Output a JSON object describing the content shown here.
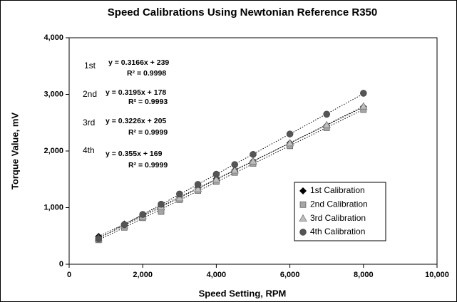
{
  "chart_data": {
    "type": "scatter",
    "title": "Speed Calibrations Using Newtonian Reference R350",
    "xlabel": "Speed Setting, RPM",
    "ylabel": "Torque Value, mV",
    "x": [
      800,
      1500,
      2000,
      2500,
      3000,
      3500,
      4000,
      4500,
      5000,
      6000,
      7000,
      8000
    ],
    "xlim": [
      0,
      10000
    ],
    "xticks": [
      0,
      {
        "value": 2000,
        "label": "2,000"
      },
      {
        "value": 4000,
        "label": "4,000"
      },
      {
        "value": 6000,
        "label": "6,000"
      },
      {
        "value": 8000,
        "label": "8,000"
      },
      {
        "value": 10000,
        "label": "10,000"
      }
    ],
    "ylim": [
      0,
      4000
    ],
    "yticks": [
      0,
      {
        "value": 1000,
        "label": "1,000"
      },
      {
        "value": 2000,
        "label": "2,000"
      },
      {
        "value": 3000,
        "label": "3,000"
      },
      {
        "value": 4000,
        "label": "4,000"
      }
    ],
    "grid": false,
    "legend": "lower right",
    "series": [
      {
        "name": "1st Calibration",
        "marker": "diamond",
        "color": "#000000",
        "values": [
          490,
          710,
          870,
          1030,
          1190,
          1350,
          1510,
          1660,
          1820,
          2140,
          2450,
          2780
        ],
        "trendline": {
          "label": "1st",
          "equation": "y = 0.3166x + 239",
          "r2": "R² = 0.9998"
        }
      },
      {
        "name": "2nd Calibration",
        "marker": "square",
        "color": "#a6a6a6",
        "values": [
          430,
          650,
          820,
          930,
          1140,
          1300,
          1460,
          1620,
          1780,
          2090,
          2410,
          2730
        ],
        "trendline": {
          "label": "2nd",
          "equation": "y = 0.3195x + 178",
          "r2": "R² = 0.9993"
        }
      },
      {
        "name": "3rd Calibration",
        "marker": "triangle",
        "color": "#bfbfbf",
        "values": [
          460,
          690,
          850,
          1010,
          1170,
          1330,
          1500,
          1660,
          1820,
          2140,
          2460,
          2790
        ],
        "trendline": {
          "label": "3rd",
          "equation": "y = 0.3226x + 205",
          "r2": "R² = 0.9999"
        }
      },
      {
        "name": "4th Calibration",
        "marker": "circle",
        "color": "#555555",
        "values": [
          450,
          700,
          880,
          1060,
          1240,
          1410,
          1590,
          1760,
          1940,
          2300,
          2650,
          3020
        ],
        "trendline": {
          "label": "4th",
          "equation": "y = 0.355x + 169",
          "r2": "R² = 0.9999"
        }
      }
    ]
  }
}
